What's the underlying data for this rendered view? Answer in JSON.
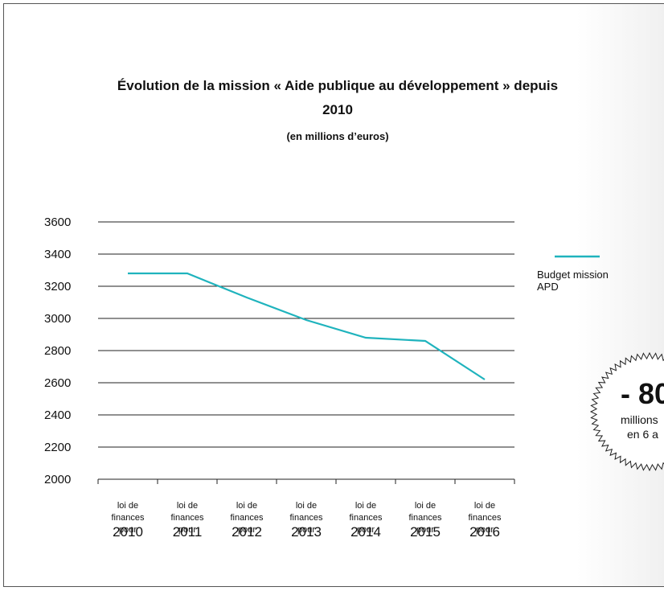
{
  "chart_data": {
    "type": "line",
    "title": "Évolution de la mission « Aide publique au développement » depuis 2010",
    "subtitle": "(en millions d’euros)",
    "category_prefix": "loi de finances pour",
    "categories": [
      "2010",
      "2011",
      "2012",
      "2013",
      "2014",
      "2015",
      "2016"
    ],
    "series": [
      {
        "name": "Budget mission APD",
        "color": "#1fb3bd",
        "values": [
          3280,
          3280,
          3130,
          2990,
          2880,
          2860,
          2620
        ]
      }
    ],
    "ylim": [
      2000,
      3600
    ],
    "yticks": [
      2000,
      2200,
      2400,
      2600,
      2800,
      3000,
      3200,
      3400,
      3600
    ],
    "grid": true,
    "legend": "right",
    "annotations": [
      "- 80",
      "millions",
      "en 6 a"
    ]
  }
}
